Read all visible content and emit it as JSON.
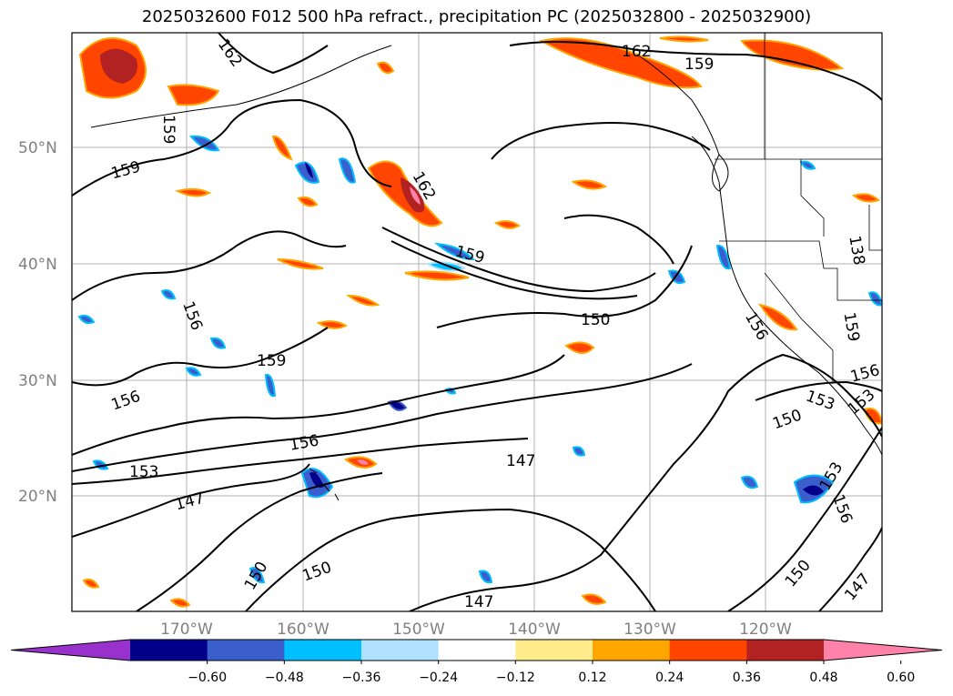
{
  "title": "2025032600 F012 500 hPa refract., precipitation PC (2025032800 - 2025032900)",
  "lat_labels": [
    "50°N",
    "40°N",
    "30°N",
    "20°N"
  ],
  "lon_labels": [
    "170°W",
    "160°W",
    "150°W",
    "140°W",
    "130°W",
    "120°W"
  ],
  "contour_labels": [
    "162",
    "159",
    "159",
    "162",
    "159",
    "162",
    "159",
    "156",
    "159",
    "156",
    "156",
    "153",
    "147",
    "150",
    "150",
    "150",
    "147",
    "147",
    "156",
    "153",
    "153",
    "159",
    "156",
    "150",
    "147",
    "153",
    "156",
    "138",
    "150"
  ],
  "colorbar": {
    "ticks": [
      "−0.60",
      "−0.48",
      "−0.36",
      "−0.24",
      "−0.12",
      "0.12",
      "0.24",
      "0.36",
      "0.48",
      "0.60"
    ],
    "colors": [
      "#9932cc",
      "#00008b",
      "#3a5fcd",
      "#00bfff",
      "#b0e2ff",
      "#ffffff",
      "#ffec8b",
      "#ffa500",
      "#ff4500",
      "#b22222",
      "#ff82ab"
    ]
  }
}
